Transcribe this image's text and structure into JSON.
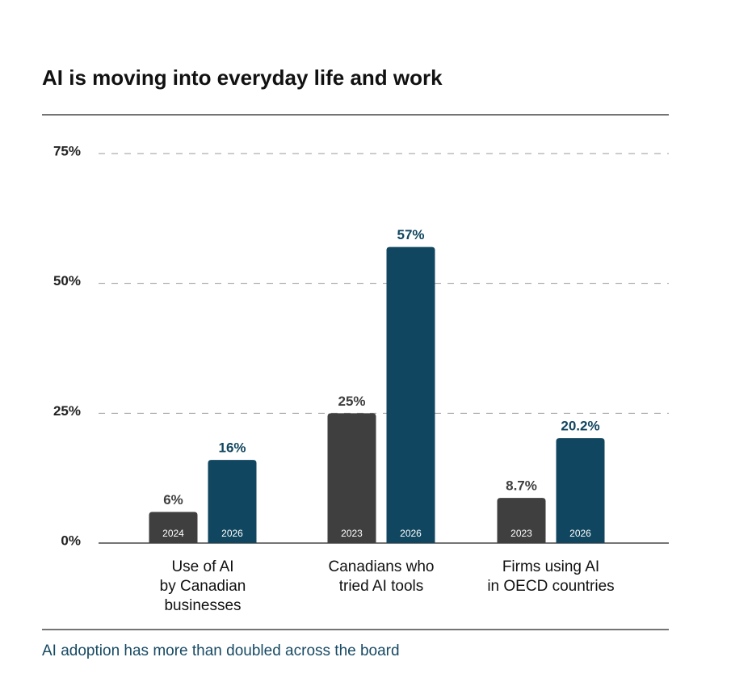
{
  "chart_data": {
    "type": "bar",
    "title": "AI is moving into everyday life and work",
    "caption": "AI adoption has more than doubled across the board",
    "ylim": [
      0,
      75
    ],
    "yticks": [
      {
        "value": 0,
        "label": "0%"
      },
      {
        "value": 25,
        "label": "25%"
      },
      {
        "value": 50,
        "label": "50%"
      },
      {
        "value": 75,
        "label": "75%"
      }
    ],
    "grid": true,
    "groups": [
      {
        "category": [
          "Use of AI",
          "by Canadian",
          "businesses"
        ],
        "bars": [
          {
            "year": "2024",
            "value": 6,
            "value_label": "6%",
            "color": "#3f3f3f"
          },
          {
            "year": "2026",
            "value": 16,
            "value_label": "16%",
            "color": "#10465f"
          }
        ]
      },
      {
        "category": [
          "Canadians who",
          "tried AI tools"
        ],
        "bars": [
          {
            "year": "2023",
            "value": 25,
            "value_label": "25%",
            "color": "#3f3f3f"
          },
          {
            "year": "2026",
            "value": 57,
            "value_label": "57%",
            "color": "#10465f"
          }
        ]
      },
      {
        "category": [
          "Firms using AI",
          "in OECD countries"
        ],
        "bars": [
          {
            "year": "2023",
            "value": 8.7,
            "value_label": "8.7%",
            "color": "#3f3f3f"
          },
          {
            "year": "2026",
            "value": 20.2,
            "value_label": "20.2%",
            "color": "#10465f"
          }
        ]
      }
    ]
  }
}
